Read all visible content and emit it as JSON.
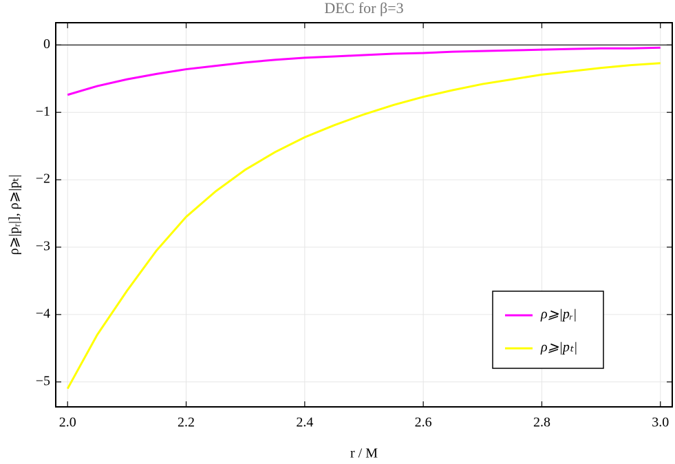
{
  "chart_data": {
    "type": "line",
    "title": "DEC for β=3",
    "x_label": "r / M",
    "y_label": "ρ⩾|pᵣ|], ρ⩾|pₜ|",
    "x": [
      2.0,
      2.05,
      2.1,
      2.15,
      2.2,
      2.25,
      2.3,
      2.35,
      2.4,
      2.45,
      2.5,
      2.55,
      2.6,
      2.65,
      2.7,
      2.75,
      2.8,
      2.85,
      2.9,
      2.95,
      3.0
    ],
    "series": [
      {
        "name": "ρ⩾|pᵣ|",
        "color": "#ff00ff",
        "values": [
          -0.74,
          -0.61,
          -0.51,
          -0.43,
          -0.36,
          -0.31,
          -0.26,
          -0.22,
          -0.19,
          -0.17,
          -0.15,
          -0.13,
          -0.12,
          -0.1,
          -0.09,
          -0.08,
          -0.07,
          -0.06,
          -0.05,
          -0.05,
          -0.04
        ]
      },
      {
        "name": "ρ⩾|pₜ|",
        "color": "#ffff00",
        "values": [
          -5.1,
          -4.3,
          -3.65,
          -3.05,
          -2.55,
          -2.17,
          -1.85,
          -1.59,
          -1.37,
          -1.19,
          -1.03,
          -0.89,
          -0.77,
          -0.67,
          -0.58,
          -0.51,
          -0.44,
          -0.39,
          -0.34,
          -0.3,
          -0.27
        ]
      }
    ],
    "xlim": [
      1.98,
      3.02
    ],
    "ylim": [
      -5.37,
      0.33
    ],
    "xticks": [
      {
        "value": 2.0,
        "label": "2.0"
      },
      2.2,
      2.4,
      2.6,
      2.8,
      {
        "value": 3.0,
        "label": "3.0"
      }
    ],
    "yticks": [
      0,
      {
        "value": -1,
        "label": "−1"
      },
      {
        "value": -2,
        "label": "−2"
      },
      {
        "value": -3,
        "label": "−3"
      },
      {
        "value": -4,
        "label": "−4"
      },
      {
        "value": -5,
        "label": "−5"
      }
    ],
    "grid": true,
    "legend": "lower right"
  }
}
